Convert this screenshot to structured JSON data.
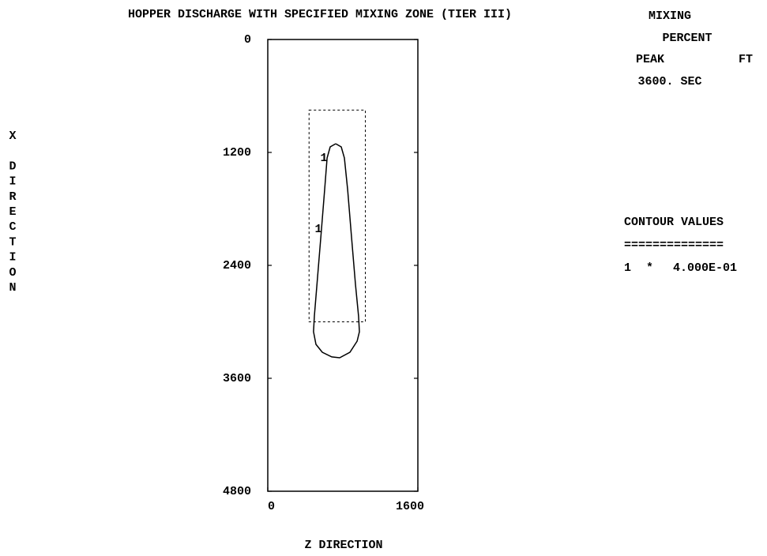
{
  "chart_data": {
    "type": "contour",
    "title": "HOPPER DISCHARGE WITH SPECIFIED MIXING ZONE (TIER III)",
    "x_label": "Z DIRECTION",
    "y_label": "X DIRECTION",
    "xlim": [
      0,
      1600
    ],
    "xticks": [
      0,
      1600
    ],
    "ylim": [
      0,
      4800
    ],
    "yticks": [
      0,
      1200,
      2400,
      3600,
      4800
    ],
    "y_inverted": true,
    "info": {
      "quantity": "MIXING",
      "units": "PERCENT",
      "statistic": "PEAK",
      "length_unit": "FT",
      "time": "3600. SEC"
    },
    "legend_title": "CONTOUR VALUES",
    "legend_rule": "==============",
    "legend_symbol": "*",
    "mixing_zone": {
      "z": [
        440,
        1040
      ],
      "x": [
        750,
        3000
      ]
    },
    "series": [
      {
        "name": "1",
        "value": 0.4,
        "value_label": "4.000E-01",
        "color": "#000000",
        "z": [
          724,
          783,
          817,
          851,
          893,
          935,
          968,
          977,
          952,
          876,
          766,
          682,
          581,
          514,
          488,
          497,
          531,
          573,
          606,
          632,
          665,
          724
        ],
        "x": [
          1108,
          1141,
          1259,
          1594,
          2098,
          2601,
          2937,
          3105,
          3206,
          3323,
          3382,
          3373,
          3323,
          3239,
          3105,
          2937,
          2517,
          2014,
          1594,
          1259,
          1141,
          1108
        ]
      }
    ]
  }
}
